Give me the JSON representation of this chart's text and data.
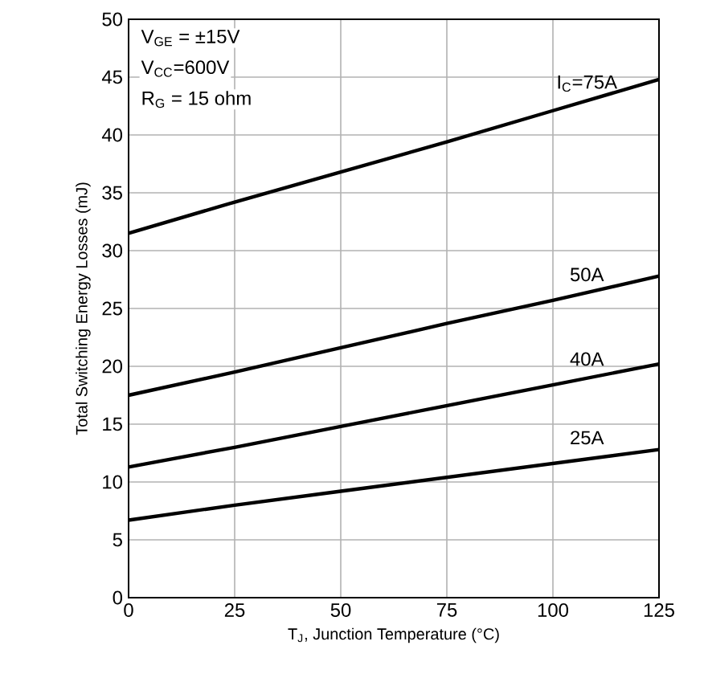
{
  "chart_data": {
    "type": "line",
    "xlabel": "T$_{J}$, Junction Temperature (°C)",
    "ylabel": "Total Switching Energy Losses (mJ)",
    "x": [
      0,
      25,
      50,
      75,
      100,
      125
    ],
    "series": [
      {
        "name": "I$_{C}$=75A",
        "color": "#000000",
        "values": [
          31.5,
          34.2,
          36.8,
          39.4,
          42.1,
          44.8
        ]
      },
      {
        "name": "50A",
        "color": "#000000",
        "values": [
          17.5,
          19.5,
          21.6,
          23.7,
          25.7,
          27.8
        ]
      },
      {
        "name": "40A",
        "color": "#000000",
        "values": [
          11.3,
          13.0,
          14.8,
          16.6,
          18.4,
          20.2
        ]
      },
      {
        "name": "25A",
        "color": "#000000",
        "values": [
          6.7,
          8.0,
          9.2,
          10.4,
          11.6,
          12.8
        ]
      }
    ],
    "xlim": [
      0,
      125
    ],
    "xticks": [
      0,
      25,
      50,
      75,
      100,
      125
    ],
    "ylim": [
      0,
      50
    ],
    "yticks": [
      0,
      5,
      10,
      15,
      20,
      25,
      30,
      35,
      40,
      45,
      50
    ],
    "grid": true,
    "marker": "none",
    "line_style": "solid",
    "annotations": [
      "V$_{GE}$ = ±15V",
      "V$_{CC}$=600V",
      "R$_{G}$ = 15 ohm"
    ]
  }
}
